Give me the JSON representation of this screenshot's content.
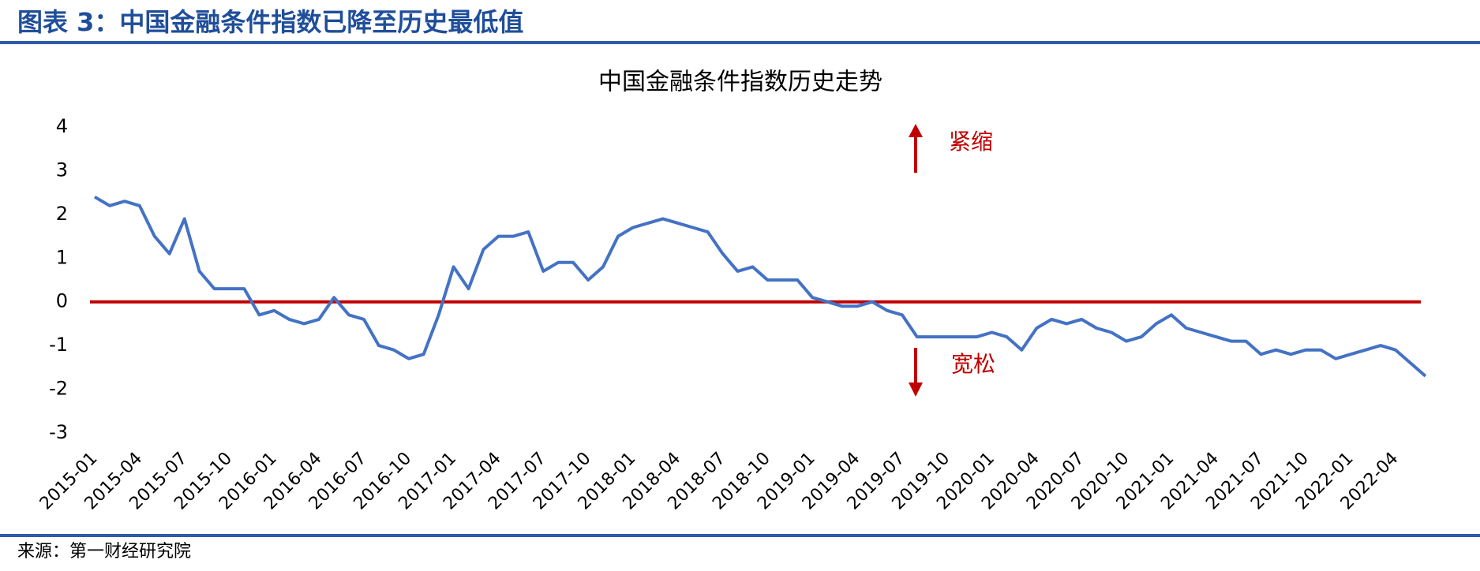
{
  "header": {
    "title": "图表 3：中国金融条件指数已降至历史最低值"
  },
  "chart_data": {
    "type": "line",
    "title": "中国金融条件指数历史走势",
    "x": [
      "2015-01",
      "2015-02",
      "2015-03",
      "2015-04",
      "2015-05",
      "2015-06",
      "2015-07",
      "2015-08",
      "2015-09",
      "2015-10",
      "2015-11",
      "2015-12",
      "2016-01",
      "2016-02",
      "2016-03",
      "2016-04",
      "2016-05",
      "2016-06",
      "2016-07",
      "2016-08",
      "2016-09",
      "2016-10",
      "2016-11",
      "2016-12",
      "2017-01",
      "2017-02",
      "2017-03",
      "2017-04",
      "2017-05",
      "2017-06",
      "2017-07",
      "2017-08",
      "2017-09",
      "2017-10",
      "2017-11",
      "2017-12",
      "2018-01",
      "2018-02",
      "2018-03",
      "2018-04",
      "2018-05",
      "2018-06",
      "2018-07",
      "2018-08",
      "2018-09",
      "2018-10",
      "2018-11",
      "2018-12",
      "2019-01",
      "2019-02",
      "2019-03",
      "2019-04",
      "2019-05",
      "2019-06",
      "2019-07",
      "2019-08",
      "2019-09",
      "2019-10",
      "2019-11",
      "2019-12",
      "2020-01",
      "2020-02",
      "2020-03",
      "2020-04",
      "2020-05",
      "2020-06",
      "2020-07",
      "2020-08",
      "2020-09",
      "2020-10",
      "2020-11",
      "2020-12",
      "2021-01",
      "2021-02",
      "2021-03",
      "2021-04",
      "2021-05",
      "2021-06",
      "2021-07",
      "2021-08",
      "2021-09",
      "2021-10",
      "2021-11",
      "2021-12",
      "2022-01",
      "2022-02",
      "2022-03",
      "2022-04",
      "2022-05",
      "2022-06"
    ],
    "series": [
      {
        "color": "#4472c4",
        "values": [
          2.4,
          2.2,
          2.3,
          2.2,
          1.5,
          1.1,
          1.9,
          0.7,
          0.3,
          0.3,
          0.3,
          -0.3,
          -0.2,
          -0.4,
          -0.5,
          -0.4,
          0.1,
          -0.3,
          -0.4,
          -1.0,
          -1.1,
          -1.3,
          -1.2,
          -0.3,
          0.8,
          0.3,
          1.2,
          1.5,
          1.5,
          1.6,
          0.7,
          0.9,
          0.9,
          0.5,
          0.8,
          1.5,
          1.7,
          1.8,
          1.9,
          1.8,
          1.7,
          1.6,
          1.1,
          0.7,
          0.8,
          0.5,
          0.5,
          0.5,
          0.1,
          0.0,
          -0.1,
          -0.1,
          0.0,
          -0.2,
          -0.3,
          -0.8,
          -0.8,
          -0.8,
          -0.8,
          -0.8,
          -0.7,
          -0.8,
          -1.1,
          -0.6,
          -0.4,
          -0.5,
          -0.4,
          -0.6,
          -0.7,
          -0.9,
          -0.8,
          -0.5,
          -0.3,
          -0.6,
          -0.7,
          -0.8,
          -0.9,
          -0.9,
          -1.2,
          -1.1,
          -1.2,
          -1.1,
          -1.1,
          -1.3,
          -1.2,
          -1.1,
          -1.0,
          -1.1,
          -1.4,
          -1.7
        ]
      }
    ],
    "xticks": [
      "2015-01",
      "2015-04",
      "2015-07",
      "2015-10",
      "2016-01",
      "2016-04",
      "2016-07",
      "2016-10",
      "2017-01",
      "2017-04",
      "2017-07",
      "2017-10",
      "2018-01",
      "2018-04",
      "2018-07",
      "2018-10",
      "2019-01",
      "2019-04",
      "2019-07",
      "2019-10",
      "2020-01",
      "2020-04",
      "2020-07",
      "2020-10",
      "2021-01",
      "2021-04",
      "2021-07",
      "2021-10",
      "2022-01",
      "2022-04"
    ],
    "ylim": [
      -3,
      4
    ],
    "yticks": [
      -3,
      -2,
      -1,
      0,
      1,
      2,
      3,
      4
    ],
    "reference_line": {
      "value": 0,
      "color": "#c00000"
    },
    "annotations": {
      "up": "紧缩",
      "down": "宽松",
      "color": "#c00000"
    }
  },
  "footer": {
    "source": "来源：第一财经研究院"
  }
}
